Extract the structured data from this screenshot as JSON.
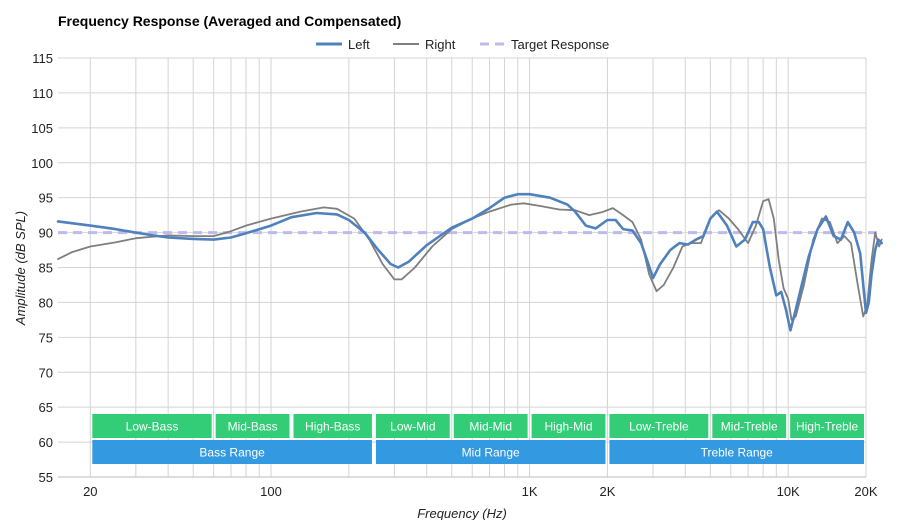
{
  "chart_data": {
    "type": "line",
    "title": "Frequency Response (Averaged and Compensated)",
    "xlabel": "Frequency (Hz)",
    "ylabel": "Amplitude (dB SPL)",
    "x_scale": "log",
    "xlim": [
      15,
      20000
    ],
    "ylim": [
      55,
      115
    ],
    "yticks": [
      55,
      60,
      65,
      70,
      75,
      80,
      85,
      90,
      95,
      100,
      105,
      110,
      115
    ],
    "xticks": [
      {
        "value": 20,
        "label": "20"
      },
      {
        "value": 100,
        "label": "100"
      },
      {
        "value": 1000,
        "label": "1K"
      },
      {
        "value": 2000,
        "label": "2K"
      },
      {
        "value": 10000,
        "label": "10K"
      },
      {
        "value": 20000,
        "label": "20K"
      }
    ],
    "grid": true,
    "legend_position": "top-center",
    "series": [
      {
        "name": "Left",
        "color": "#4f81bd",
        "style": "solid",
        "points": [
          [
            15,
            91.6
          ],
          [
            20,
            91.0
          ],
          [
            25,
            90.5
          ],
          [
            30,
            90.0
          ],
          [
            35,
            89.6
          ],
          [
            40,
            89.3
          ],
          [
            50,
            89.1
          ],
          [
            60,
            89.0
          ],
          [
            70,
            89.3
          ],
          [
            80,
            89.9
          ],
          [
            100,
            91.0
          ],
          [
            120,
            92.2
          ],
          [
            150,
            92.8
          ],
          [
            180,
            92.6
          ],
          [
            200,
            91.8
          ],
          [
            230,
            90.0
          ],
          [
            260,
            87.5
          ],
          [
            290,
            85.5
          ],
          [
            310,
            85.0
          ],
          [
            340,
            85.8
          ],
          [
            400,
            88.2
          ],
          [
            500,
            90.7
          ],
          [
            600,
            92.0
          ],
          [
            700,
            93.5
          ],
          [
            800,
            95.0
          ],
          [
            900,
            95.5
          ],
          [
            1000,
            95.5
          ],
          [
            1200,
            95.0
          ],
          [
            1400,
            94.0
          ],
          [
            1500,
            93.0
          ],
          [
            1650,
            91.0
          ],
          [
            1800,
            90.6
          ],
          [
            2000,
            91.8
          ],
          [
            2150,
            91.8
          ],
          [
            2300,
            90.5
          ],
          [
            2500,
            90.3
          ],
          [
            2700,
            88.5
          ],
          [
            2850,
            86.0
          ],
          [
            3000,
            83.5
          ],
          [
            3200,
            85.5
          ],
          [
            3500,
            87.5
          ],
          [
            3800,
            88.5
          ],
          [
            4100,
            88.3
          ],
          [
            4400,
            89.0
          ],
          [
            4700,
            89.5
          ],
          [
            5000,
            92.0
          ],
          [
            5300,
            93.0
          ],
          [
            5800,
            91.0
          ],
          [
            6300,
            88.0
          ],
          [
            6800,
            89.0
          ],
          [
            7300,
            91.5
          ],
          [
            7700,
            91.5
          ],
          [
            8000,
            90.5
          ],
          [
            8500,
            85.0
          ],
          [
            9000,
            81.0
          ],
          [
            9400,
            81.5
          ],
          [
            9800,
            79.0
          ],
          [
            10200,
            76.0
          ],
          [
            10700,
            79.0
          ],
          [
            11200,
            82.0
          ],
          [
            12000,
            86.5
          ],
          [
            13000,
            90.5
          ],
          [
            14000,
            92.3
          ],
          [
            15000,
            89.5
          ],
          [
            16000,
            89.0
          ],
          [
            17000,
            91.5
          ],
          [
            18000,
            90.0
          ],
          [
            19000,
            87.0
          ],
          [
            20000,
            78.5
          ],
          [
            20500,
            80.0
          ],
          [
            21000,
            84.0
          ],
          [
            21700,
            87.5
          ],
          [
            22300,
            89.0
          ],
          [
            23000,
            88.5
          ]
        ]
      },
      {
        "name": "Right",
        "color": "#7f7f7f",
        "style": "solid",
        "points": [
          [
            15,
            86.2
          ],
          [
            17,
            87.2
          ],
          [
            20,
            88.0
          ],
          [
            25,
            88.6
          ],
          [
            30,
            89.2
          ],
          [
            40,
            89.6
          ],
          [
            50,
            89.5
          ],
          [
            60,
            89.5
          ],
          [
            70,
            90.2
          ],
          [
            80,
            91.0
          ],
          [
            100,
            92.0
          ],
          [
            130,
            93.0
          ],
          [
            160,
            93.6
          ],
          [
            180,
            93.4
          ],
          [
            210,
            92.0
          ],
          [
            240,
            89.0
          ],
          [
            270,
            85.5
          ],
          [
            300,
            83.3
          ],
          [
            320,
            83.3
          ],
          [
            360,
            85.0
          ],
          [
            420,
            88.0
          ],
          [
            500,
            90.5
          ],
          [
            600,
            92.0
          ],
          [
            700,
            93.0
          ],
          [
            850,
            94.0
          ],
          [
            950,
            94.2
          ],
          [
            1100,
            93.8
          ],
          [
            1300,
            93.3
          ],
          [
            1500,
            93.2
          ],
          [
            1700,
            92.5
          ],
          [
            1900,
            92.9
          ],
          [
            2100,
            93.5
          ],
          [
            2300,
            92.5
          ],
          [
            2500,
            91.5
          ],
          [
            2700,
            89.0
          ],
          [
            2900,
            84.0
          ],
          [
            3100,
            81.6
          ],
          [
            3300,
            82.5
          ],
          [
            3600,
            85.0
          ],
          [
            3900,
            88.0
          ],
          [
            4200,
            88.5
          ],
          [
            4600,
            88.5
          ],
          [
            5000,
            92.0
          ],
          [
            5400,
            93.2
          ],
          [
            5900,
            92.0
          ],
          [
            6400,
            90.5
          ],
          [
            7000,
            88.5
          ],
          [
            7500,
            91.0
          ],
          [
            8000,
            94.5
          ],
          [
            8400,
            94.8
          ],
          [
            8800,
            92.0
          ],
          [
            9200,
            86.0
          ],
          [
            9600,
            82.0
          ],
          [
            10000,
            80.5
          ],
          [
            10300,
            77.5
          ],
          [
            10700,
            78.0
          ],
          [
            11500,
            82.5
          ],
          [
            12500,
            89.0
          ],
          [
            13500,
            92.0
          ],
          [
            14500,
            91.5
          ],
          [
            15500,
            88.5
          ],
          [
            16500,
            89.5
          ],
          [
            17500,
            88.5
          ],
          [
            18500,
            83.0
          ],
          [
            19500,
            78.0
          ],
          [
            20200,
            79.5
          ],
          [
            21000,
            86.0
          ],
          [
            21700,
            90.0
          ],
          [
            22500,
            88.0
          ],
          [
            23000,
            89.0
          ]
        ]
      },
      {
        "name": "Target Response",
        "color": "#bbbbf0",
        "style": "dashed",
        "points": [
          [
            15,
            90
          ],
          [
            23000,
            90
          ]
        ]
      }
    ],
    "range_bands": {
      "top_row": [
        {
          "label": "Low-Bass",
          "from": 20,
          "to": 60
        },
        {
          "label": "Mid-Bass",
          "from": 60,
          "to": 120
        },
        {
          "label": "High-Bass",
          "from": 120,
          "to": 250
        },
        {
          "label": "Low-Mid",
          "from": 250,
          "to": 500
        },
        {
          "label": "Mid-Mid",
          "from": 500,
          "to": 1000
        },
        {
          "label": "High-Mid",
          "from": 1000,
          "to": 2000
        },
        {
          "label": "Low-Treble",
          "from": 2000,
          "to": 5000
        },
        {
          "label": "Mid-Treble",
          "from": 5000,
          "to": 10000
        },
        {
          "label": "High-Treble",
          "from": 10000,
          "to": 20000
        }
      ],
      "bottom_row": [
        {
          "label": "Bass Range",
          "from": 20,
          "to": 250
        },
        {
          "label": "Mid Range",
          "from": 250,
          "to": 2000
        },
        {
          "label": "Treble Range",
          "from": 2000,
          "to": 20000
        }
      ],
      "top_color": "#33cc77",
      "bottom_color": "#3399e0"
    }
  }
}
